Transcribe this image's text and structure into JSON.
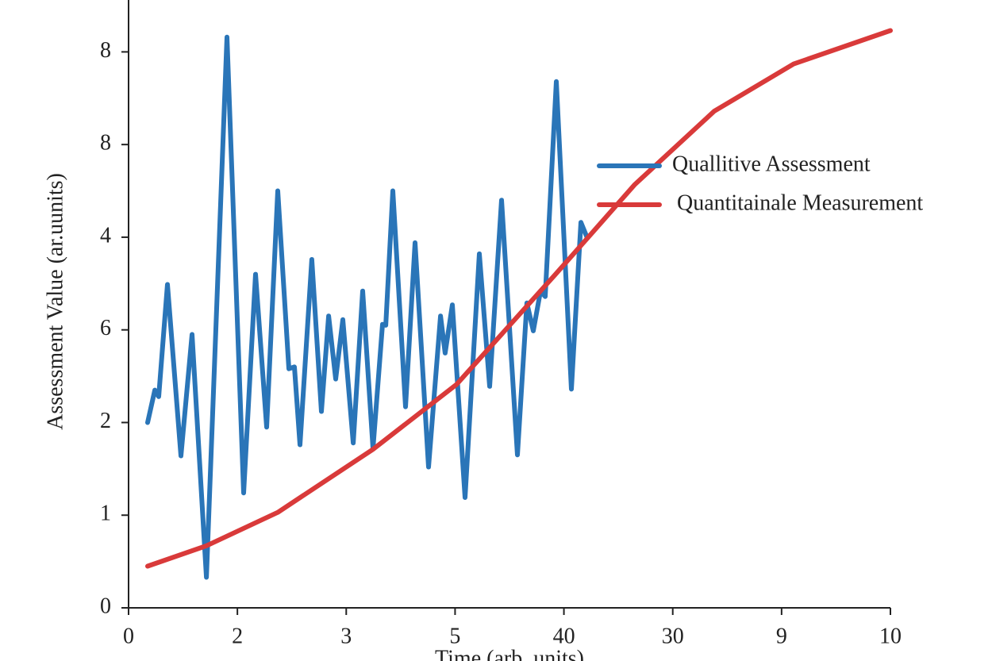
{
  "chart_data": {
    "type": "line",
    "xlabel": "Time (arb. units)",
    "ylabel": "Assessment Value (ar.uunits)",
    "xlim": [
      0,
      7
    ],
    "ylim": [
      0,
      6.56
    ],
    "xticks": [
      0,
      {
        "value": 1,
        "label": "2"
      },
      {
        "value": 2,
        "label": "3"
      },
      {
        "value": 3,
        "label": "5"
      },
      {
        "value": 4,
        "label": "40"
      },
      {
        "value": 5,
        "label": "30"
      },
      {
        "value": 6,
        "label": "9"
      },
      {
        "value": 7,
        "label": "10"
      }
    ],
    "yticks": [
      0,
      1,
      2,
      {
        "value": 3,
        "label": "6"
      },
      4,
      {
        "value": 5,
        "label": "8"
      },
      {
        "value": 6,
        "label": "8"
      }
    ],
    "grid": false,
    "legend": "right",
    "series": [
      {
        "name": "Quallitive Assessment",
        "color": "#2a75b8",
        "x": [
          0.175,
          0.241,
          0.277,
          0.357,
          0.481,
          0.583,
          0.715,
          0.904,
          1.057,
          1.167,
          1.269,
          1.371,
          1.473,
          1.524,
          1.575,
          1.684,
          1.772,
          1.838,
          1.903,
          1.969,
          2.064,
          2.151,
          2.246,
          2.333,
          2.363,
          2.428,
          2.545,
          2.632,
          2.756,
          2.866,
          2.909,
          2.975,
          3.092,
          3.223,
          3.318,
          3.427,
          3.573,
          3.66,
          3.719,
          3.785,
          3.828,
          3.93,
          4.069,
          4.156,
          4.215
        ],
        "values": [
          2.0,
          2.35,
          2.28,
          3.49,
          1.64,
          2.95,
          0.33,
          6.16,
          1.24,
          3.6,
          1.95,
          4.5,
          2.58,
          2.6,
          1.76,
          3.76,
          2.12,
          3.15,
          2.47,
          3.11,
          1.78,
          3.42,
          1.72,
          3.06,
          3.05,
          4.5,
          2.17,
          3.94,
          1.52,
          3.15,
          2.75,
          3.27,
          1.19,
          3.82,
          2.39,
          4.4,
          1.65,
          3.29,
          2.99,
          3.42,
          3.36,
          5.68,
          2.36,
          4.16,
          3.99
        ]
      },
      {
        "name": "Quantitainale Measurement",
        "color": "#d93a3a",
        "x": [
          0.175,
          0.715,
          1.371,
          2.246,
          3.012,
          3.923,
          4.652,
          5.381,
          6.111,
          7.0
        ],
        "values": [
          0.45,
          0.67,
          1.03,
          1.71,
          2.41,
          3.6,
          4.57,
          5.36,
          5.87,
          6.23
        ]
      }
    ]
  }
}
